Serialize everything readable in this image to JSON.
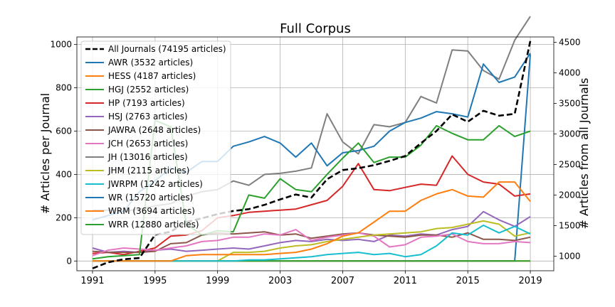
{
  "chart_data": {
    "type": "line",
    "title": "Full Corpus",
    "xlabel": "",
    "ylabel": "# Articles per Journal",
    "ylabel_right": "# Articles from all Journals",
    "x": [
      1991,
      1992,
      1993,
      1994,
      1995,
      1996,
      1997,
      1998,
      1999,
      2000,
      2001,
      2002,
      2003,
      2004,
      2005,
      2006,
      2007,
      2008,
      2009,
      2010,
      2011,
      2012,
      2013,
      2014,
      2015,
      2016,
      2017,
      2018,
      2019
    ],
    "xticks": [
      1991,
      1995,
      1999,
      2003,
      2007,
      2011,
      2015,
      2019
    ],
    "xlim": [
      1990,
      2020.5
    ],
    "ylim": [
      -45,
      1035
    ],
    "yticks": [
      0,
      200,
      400,
      600,
      800,
      1000
    ],
    "ylim_right": [
      762,
      4588
    ],
    "yticks_right": [
      1000,
      1500,
      2000,
      2500,
      3000,
      3500,
      4000,
      4500
    ],
    "grid": true,
    "legend_position": "top-left",
    "series": [
      {
        "name": "All Journals (74195 articles)",
        "axis": "right",
        "color": "#000000",
        "dash": true,
        "values": [
          800,
          900,
          950,
          970,
          1350,
          1400,
          1560,
          1620,
          1690,
          1740,
          1770,
          1840,
          1930,
          2010,
          1960,
          2260,
          2410,
          2440,
          2490,
          2560,
          2640,
          2850,
          3050,
          3320,
          3200,
          3380,
          3300,
          3330,
          4520
        ]
      },
      {
        "name": "AWR (3532 articles)",
        "color": "#1f77b4",
        "values": [
          0,
          0,
          0,
          0,
          0,
          0,
          0,
          0,
          0,
          0,
          0,
          0,
          0,
          0,
          0,
          0,
          0,
          0,
          0,
          0,
          0,
          0,
          0,
          0,
          0,
          0,
          0,
          0,
          955
        ]
      },
      {
        "name": "HESS (4187 articles)",
        "color": "#ff7f0e",
        "values": [
          0,
          0,
          0,
          0,
          0,
          0,
          0,
          0,
          0,
          0,
          0,
          0,
          0,
          0,
          0,
          0,
          0,
          0,
          0,
          0,
          0,
          0,
          0,
          0,
          0,
          0,
          0,
          0,
          0
        ]
      },
      {
        "name": "HGJ (2552 articles)",
        "color": "#2ca02c",
        "values": [
          0,
          0,
          0,
          0,
          0,
          0,
          0,
          0,
          0,
          0,
          0,
          0,
          0,
          0,
          0,
          0,
          0,
          0,
          0,
          0,
          0,
          0,
          0,
          0,
          0,
          0,
          0,
          0,
          0
        ]
      },
      {
        "name": "HP (7193 articles)",
        "color": "#d62728",
        "values": [
          35,
          40,
          30,
          45,
          60,
          115,
          120,
          140,
          200,
          210,
          225,
          230,
          235,
          240,
          260,
          280,
          345,
          450,
          330,
          325,
          340,
          355,
          350,
          485,
          400,
          365,
          355,
          300,
          310
        ]
      },
      {
        "name": "HSJ (2763 articles)",
        "color": "#9467bd",
        "values": [
          60,
          40,
          45,
          40,
          50,
          55,
          45,
          50,
          55,
          60,
          55,
          70,
          85,
          95,
          90,
          100,
          95,
          100,
          90,
          120,
          115,
          125,
          120,
          145,
          160,
          228,
          190,
          160,
          205
        ]
      },
      {
        "name": "JAWRA (2648 articles)",
        "color": "#8c564b",
        "values": [
          45,
          40,
          40,
          40,
          45,
          80,
          85,
          120,
          130,
          125,
          130,
          135,
          120,
          125,
          105,
          115,
          125,
          130,
          120,
          115,
          110,
          120,
          120,
          110,
          130,
          100,
          100,
          95,
          110
        ]
      },
      {
        "name": "JCH (2653 articles)",
        "color": "#e377c2",
        "values": [
          25,
          50,
          60,
          55,
          50,
          60,
          70,
          90,
          95,
          110,
          110,
          125,
          120,
          145,
          95,
          110,
          120,
          130,
          115,
          65,
          75,
          110,
          115,
          125,
          90,
          80,
          80,
          90,
          85
        ]
      },
      {
        "name": "JH (13016 articles)",
        "color": "#7f7f7f",
        "values": [
          235,
          235,
          230,
          240,
          255,
          265,
          300,
          320,
          330,
          370,
          350,
          400,
          405,
          415,
          430,
          680,
          550,
          495,
          630,
          620,
          640,
          760,
          730,
          975,
          970,
          880,
          840,
          1020,
          1130
        ]
      },
      {
        "name": "JHM (2115 articles)",
        "color": "#bcbd22",
        "values": [
          0,
          0,
          0,
          0,
          0,
          0,
          0,
          0,
          0,
          40,
          40,
          45,
          60,
          70,
          75,
          90,
          100,
          110,
          120,
          125,
          130,
          135,
          150,
          155,
          170,
          185,
          170,
          115,
          130
        ]
      },
      {
        "name": "JWRPM (1242 articles)",
        "color": "#17becf",
        "values": [
          0,
          0,
          0,
          0,
          0,
          0,
          0,
          0,
          0,
          0,
          5,
          5,
          10,
          15,
          20,
          30,
          35,
          40,
          30,
          35,
          20,
          30,
          70,
          130,
          120,
          165,
          130,
          160,
          125
        ]
      },
      {
        "name": "WR (15720 articles)",
        "color": "#1f77b4",
        "values": [
          190,
          210,
          230,
          320,
          370,
          430,
          410,
          460,
          460,
          530,
          550,
          575,
          545,
          480,
          545,
          440,
          500,
          510,
          530,
          600,
          640,
          660,
          690,
          680,
          665,
          910,
          825,
          850,
          960
        ]
      },
      {
        "name": "WRM (3694 articles)",
        "color": "#ff7f0e",
        "values": [
          0,
          0,
          0,
          0,
          0,
          0,
          25,
          30,
          30,
          30,
          30,
          30,
          35,
          40,
          55,
          80,
          115,
          130,
          180,
          230,
          230,
          280,
          310,
          330,
          300,
          295,
          365,
          365,
          275
        ]
      },
      {
        "name": "WRR (12880 articles)",
        "color": "#2ca02c",
        "values": [
          10,
          20,
          25,
          30,
          650,
          620,
          170,
          120,
          140,
          135,
          305,
          290,
          380,
          330,
          320,
          400,
          475,
          545,
          455,
          480,
          480,
          535,
          625,
          590,
          560,
          560,
          625,
          575,
          600
        ]
      }
    ],
    "extra_lines_unlabeled_note": ""
  }
}
